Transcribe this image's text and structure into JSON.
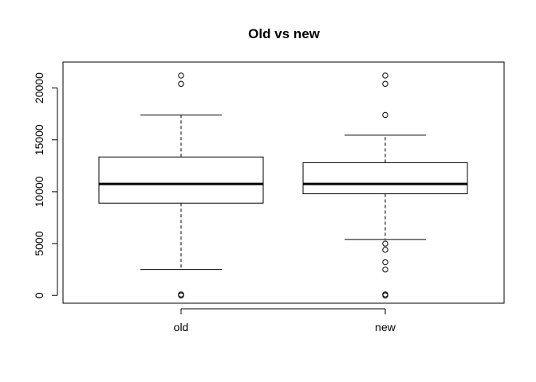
{
  "chart_data": {
    "type": "box",
    "title": "Old vs new",
    "xlabel": "",
    "ylabel": "",
    "categories": [
      "old",
      "new"
    ],
    "ylim": [
      -750,
      22500
    ],
    "yticks": [
      0,
      5000,
      10000,
      15000,
      20000
    ],
    "boxes": [
      {
        "label": "old",
        "whisker_low": 2500,
        "q1": 8900,
        "median": 10750,
        "q3": 13350,
        "whisker_high": 17400,
        "outliers": [
          21200,
          20400,
          100,
          0
        ]
      },
      {
        "label": "new",
        "whisker_low": 5400,
        "q1": 9800,
        "median": 10750,
        "q3": 12800,
        "whisker_high": 15450,
        "outliers": [
          21200,
          20400,
          17400,
          5000,
          4400,
          3200,
          2500,
          100,
          0
        ]
      }
    ]
  }
}
